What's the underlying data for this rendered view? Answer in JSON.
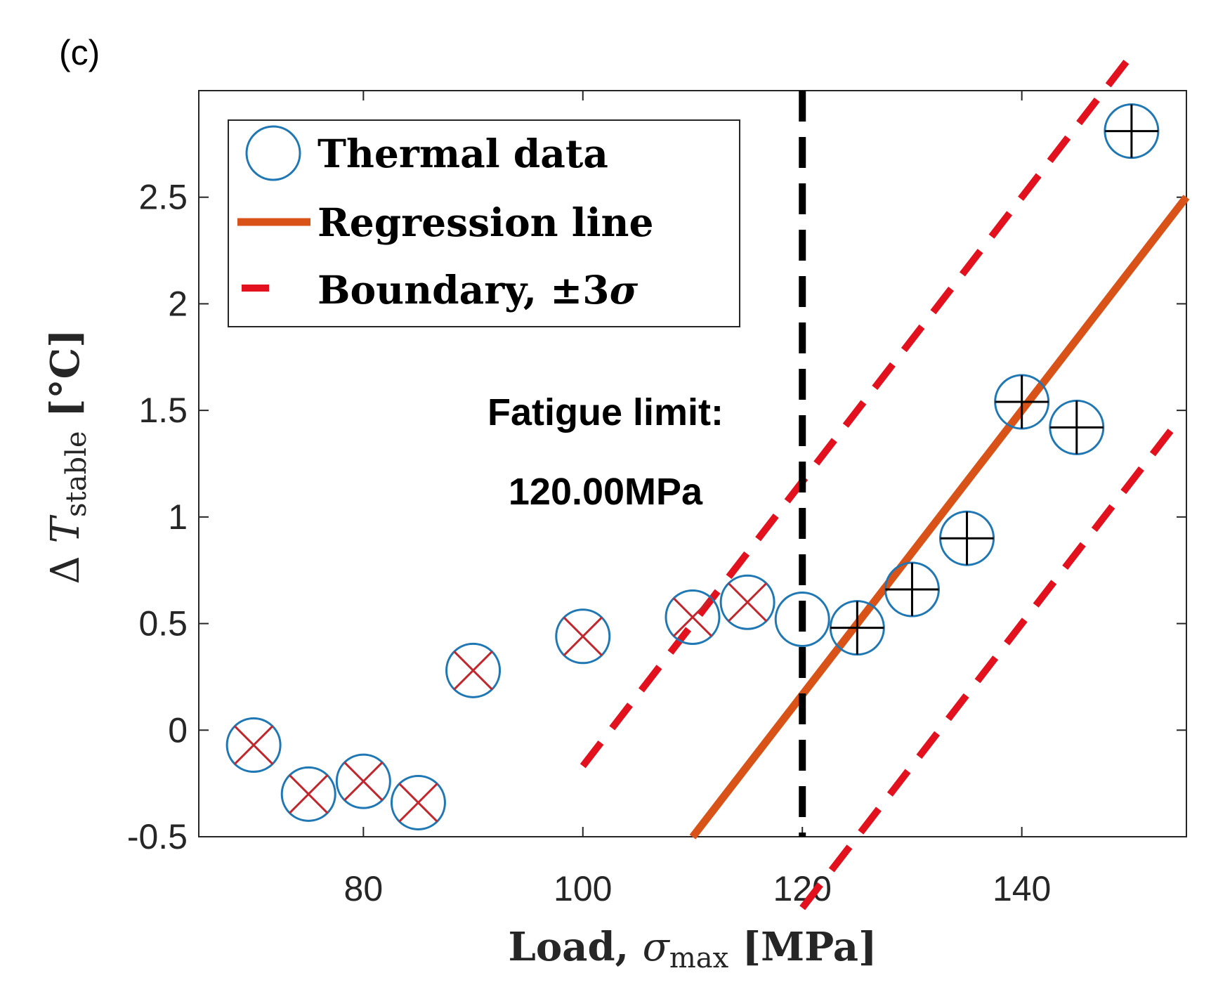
{
  "panel_label": "(c)",
  "chart_data": {
    "type": "scatter",
    "xlabel": {
      "main": "Load, ",
      "symbol": "σ",
      "subscript": "max",
      "unit": " [MPa]"
    },
    "ylabel": {
      "main": "Δ ",
      "symbol": "T",
      "subscript": "stable",
      "unit": " [°C]"
    },
    "xlim": [
      65,
      155
    ],
    "ylim": [
      -0.5,
      3.0
    ],
    "xticks": [
      80,
      100,
      120,
      140
    ],
    "xtick_labels": [
      "80",
      "100",
      "120",
      "140"
    ],
    "yticks": [
      -0.5,
      0,
      0.5,
      1,
      1.5,
      2,
      2.5
    ],
    "ytick_labels": [
      "-0.5",
      "0",
      "0.5",
      "1",
      "1.5",
      "2",
      "2.5"
    ],
    "series": [
      {
        "name": "Thermal data",
        "marker": "open-circle",
        "color": "#1f77b4",
        "points": [
          {
            "x": 70,
            "y": -0.07,
            "mark": "cross"
          },
          {
            "x": 75,
            "y": -0.3,
            "mark": "cross"
          },
          {
            "x": 80,
            "y": -0.24,
            "mark": "cross"
          },
          {
            "x": 85,
            "y": -0.34,
            "mark": "cross"
          },
          {
            "x": 90,
            "y": 0.28,
            "mark": "cross"
          },
          {
            "x": 100,
            "y": 0.44,
            "mark": "cross"
          },
          {
            "x": 110,
            "y": 0.53,
            "mark": "cross"
          },
          {
            "x": 115,
            "y": 0.6,
            "mark": "cross"
          },
          {
            "x": 120,
            "y": 0.52,
            "mark": "none"
          },
          {
            "x": 125,
            "y": 0.48,
            "mark": "plus"
          },
          {
            "x": 130,
            "y": 0.66,
            "mark": "plus"
          },
          {
            "x": 135,
            "y": 0.9,
            "mark": "plus"
          },
          {
            "x": 140,
            "y": 1.54,
            "mark": "plus"
          },
          {
            "x": 145,
            "y": 1.42,
            "mark": "plus"
          },
          {
            "x": 150,
            "y": 2.81,
            "mark": "plus"
          }
        ]
      },
      {
        "name": "Regression line",
        "type": "line",
        "color": "#d95319",
        "slope": 0.0667,
        "intercept": -7.838,
        "x_range": [
          110,
          155
        ]
      },
      {
        "name": "Boundary, ±3σ",
        "type": "line",
        "dashed": true,
        "color": "#e3101e",
        "offset": 1.0,
        "upper_x_range": [
          100,
          150
        ],
        "lower_x_range": [
          120,
          154.5
        ]
      }
    ],
    "vline": {
      "x": 120,
      "color": "#000000",
      "dashed": true
    },
    "annotation": {
      "line1": "Fatigue limit:",
      "line2": "120.00MPa"
    },
    "legend": {
      "placement": "top-left",
      "entries": [
        {
          "label": "Thermal data"
        },
        {
          "label_main": "Boundary, ±3",
          "label_symbol": "σ"
        }
      ]
    }
  }
}
